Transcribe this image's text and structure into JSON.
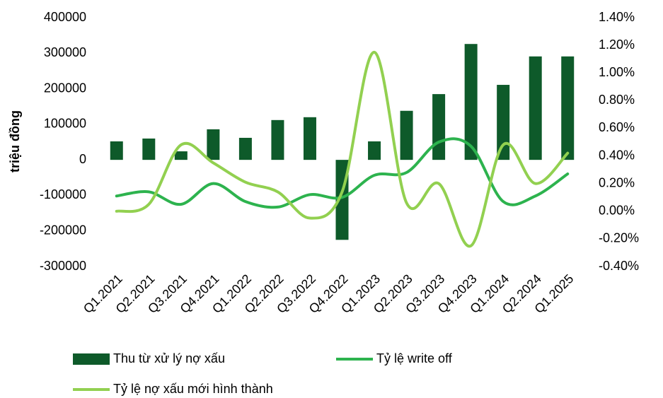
{
  "chart_data": {
    "type": "bar_line",
    "ylabel": "triệu đồng",
    "categories": [
      "Q1.2021",
      "Q2.2021",
      "Q3.2021",
      "Q4.2021",
      "Q1.2022",
      "Q2.2022",
      "Q3.2022",
      "Q4.2022",
      "Q1.2023",
      "Q2.2023",
      "Q3.2023",
      "Q4.2023",
      "Q1.2024",
      "Q2.2024",
      "Q1.2025"
    ],
    "series": [
      {
        "name": "Thu từ xử lý nợ xấu",
        "type": "bar",
        "color": "#0e5a2a",
        "axis": "y",
        "values": [
          52000,
          60000,
          24000,
          86000,
          62000,
          112000,
          120000,
          -225000,
          52000,
          138000,
          185000,
          326000,
          211000,
          291000,
          291000
        ]
      },
      {
        "name": "Tỷ lệ write off",
        "type": "line",
        "color": "#2db34e",
        "axis": "y2",
        "values": [
          0.11,
          0.14,
          0.05,
          0.2,
          0.07,
          0.03,
          0.12,
          0.1,
          0.26,
          0.28,
          0.5,
          0.47,
          0.07,
          0.11,
          0.27
        ]
      },
      {
        "name": "Tỷ lệ nợ xấu mới hình thành",
        "type": "line",
        "color": "#92d050",
        "axis": "y2",
        "values": [
          0.0,
          0.05,
          0.48,
          0.35,
          0.21,
          0.14,
          -0.05,
          0.14,
          1.15,
          0.06,
          0.2,
          -0.25,
          0.48,
          0.2,
          0.42
        ]
      }
    ],
    "ylim": [
      -300000,
      400000
    ],
    "yticks": [
      -300000,
      -200000,
      -100000,
      0,
      100000,
      200000,
      300000,
      400000
    ],
    "y2lim": [
      -0.4,
      1.4
    ],
    "y2ticks": [
      {
        "value": -0.4,
        "label": "-0.40%"
      },
      {
        "value": -0.2,
        "label": "-0.20%"
      },
      {
        "value": 0,
        "label": "0.00%"
      },
      {
        "value": 0.2,
        "label": "0.20%"
      },
      {
        "value": 0.4,
        "label": "0.40%"
      },
      {
        "value": 0.6,
        "label": "0.60%"
      },
      {
        "value": 0.8,
        "label": "0.80%"
      },
      {
        "value": 1.0,
        "label": "1.00%"
      },
      {
        "value": 1.2,
        "label": "1.20%"
      },
      {
        "value": 1.4,
        "label": "1.40%"
      }
    ],
    "legend": "bottom"
  }
}
